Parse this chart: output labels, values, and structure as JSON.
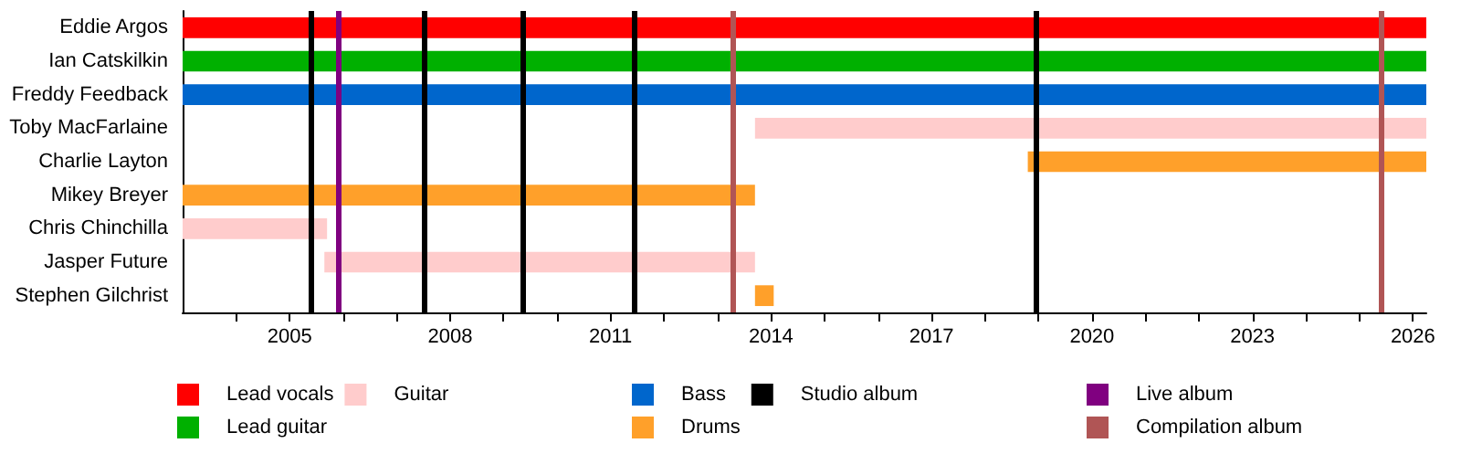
{
  "chart_data": {
    "type": "bar",
    "orientation": "horizontal",
    "categories": [
      "Eddie Argos",
      "Ian Catskilkin",
      "Freddy Feedback",
      "Toby MacFarlaine",
      "Charlie Layton",
      "Mikey Breyer",
      "Chris Chinchilla",
      "Jasper Future",
      "Stephen Gilchrist"
    ],
    "series": [
      {
        "name": "Lead vocals",
        "color": "#ff0000",
        "base": [
          2003,
          null,
          null,
          null,
          null,
          null,
          null,
          null,
          null
        ],
        "values": [
          23.25,
          null,
          null,
          null,
          null,
          null,
          null,
          null,
          null
        ]
      },
      {
        "name": "Lead guitar",
        "color": "#00b000",
        "base": [
          null,
          2003,
          null,
          null,
          null,
          null,
          null,
          null,
          null
        ],
        "values": [
          null,
          23.25,
          null,
          null,
          null,
          null,
          null,
          null,
          null
        ]
      },
      {
        "name": "Guitar",
        "color": "#ffcccc",
        "base": [
          null,
          null,
          null,
          2013.7,
          null,
          null,
          2003,
          2005.65,
          null
        ],
        "values": [
          null,
          null,
          null,
          12.55,
          null,
          null,
          2.7,
          8.05,
          null
        ]
      },
      {
        "name": "Bass",
        "color": "#0066cc",
        "base": [
          null,
          null,
          2003,
          null,
          null,
          null,
          null,
          null,
          null
        ],
        "values": [
          null,
          null,
          23.25,
          null,
          null,
          null,
          null,
          null,
          null
        ]
      },
      {
        "name": "Drums",
        "color": "#ffa02a",
        "base": [
          null,
          null,
          null,
          null,
          2018.8,
          2003,
          null,
          null,
          2013.7
        ],
        "values": [
          null,
          null,
          null,
          null,
          7.45,
          10.7,
          null,
          null,
          0.35
        ]
      }
    ],
    "ref_lines": [
      {
        "axis": "x",
        "value": 2005.4,
        "label": "Studio album",
        "color": "#000000"
      },
      {
        "axis": "x",
        "value": 2007.5,
        "color": "#000000"
      },
      {
        "axis": "x",
        "value": 2009.35,
        "color": "#000000"
      },
      {
        "axis": "x",
        "value": 2011.43,
        "color": "#000000"
      },
      {
        "axis": "x",
        "value": 2018.96,
        "color": "#000000"
      },
      {
        "axis": "x",
        "value": 2005.9,
        "label": "Live album",
        "color": "#800080"
      },
      {
        "axis": "x",
        "value": 2013.3,
        "label": "Compilation album",
        "color": "#b05555"
      },
      {
        "axis": "x",
        "value": 2025.4,
        "color": "#b05555"
      }
    ],
    "xlim": [
      2003,
      2026.25
    ],
    "xticks": [
      {
        "value": 2004,
        "label": null
      },
      2005,
      {
        "value": 2006,
        "label": null
      },
      {
        "value": 2007,
        "label": null
      },
      2008,
      {
        "value": 2009,
        "label": null
      },
      {
        "value": 2010,
        "label": null
      },
      2011,
      {
        "value": 2012,
        "label": null
      },
      {
        "value": 2013,
        "label": null
      },
      2014,
      {
        "value": 2015,
        "label": null
      },
      {
        "value": 2016,
        "label": null
      },
      2017,
      {
        "value": 2018,
        "label": null
      },
      {
        "value": 2019,
        "label": null
      },
      2020,
      {
        "value": 2021,
        "label": null
      },
      {
        "value": 2022,
        "label": null
      },
      2023,
      {
        "value": 2024,
        "label": null
      },
      {
        "value": 2025,
        "label": null
      },
      2026
    ],
    "grid": false,
    "legend": "bottom"
  }
}
